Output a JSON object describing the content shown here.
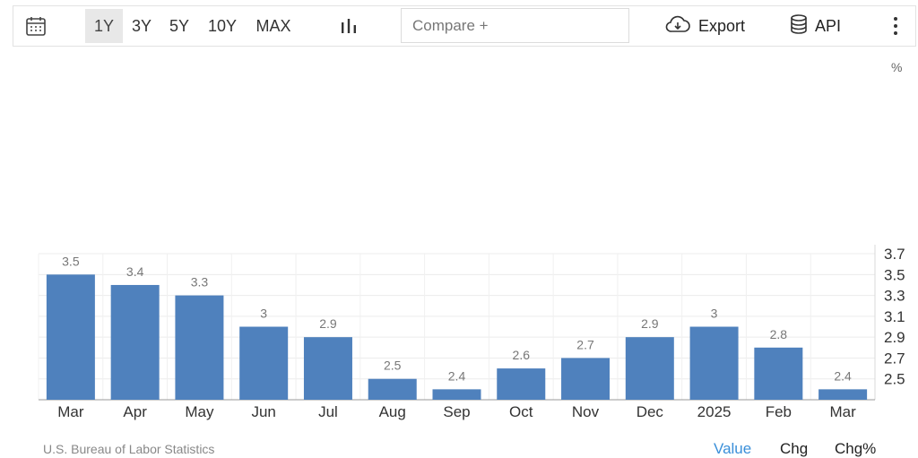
{
  "toolbar": {
    "ranges": [
      "1Y",
      "3Y",
      "5Y",
      "10Y",
      "MAX"
    ],
    "active_range": "1Y",
    "compare_placeholder": "Compare +",
    "export_label": "Export",
    "api_label": "API",
    "icons": [
      "calendar-icon",
      "bar-chart-icon",
      "cloud-download-icon",
      "database-icon",
      "more-vertical-icon"
    ]
  },
  "chart_data": {
    "type": "bar",
    "categories": [
      "Mar",
      "Apr",
      "May",
      "Jun",
      "Jul",
      "Aug",
      "Sep",
      "Oct",
      "Nov",
      "Dec",
      "2025",
      "Feb",
      "Mar"
    ],
    "values": [
      3.5,
      3.4,
      3.3,
      3.0,
      2.9,
      2.5,
      2.4,
      2.6,
      2.7,
      2.9,
      3.0,
      2.8,
      2.4
    ],
    "data_labels": [
      "3.5",
      "3.4",
      "3.3",
      "3",
      "2.9",
      "2.5",
      "2.4",
      "2.6",
      "2.7",
      "2.9",
      "3",
      "2.8",
      "2.4"
    ],
    "yticks": [
      "3.7",
      "3.5",
      "3.3",
      "3.1",
      "2.9",
      "2.7",
      "2.5"
    ],
    "yunit": "%",
    "ylim": [
      2.3,
      3.7
    ],
    "grid": true,
    "bar_color": "#4f81bd",
    "axis_position": "right"
  },
  "footer": {
    "source": "U.S. Bureau of Labor Statistics",
    "tabs": [
      "Value",
      "Chg",
      "Chg%"
    ],
    "active_tab": "Value",
    "accent_color": "#3a8fd9"
  }
}
